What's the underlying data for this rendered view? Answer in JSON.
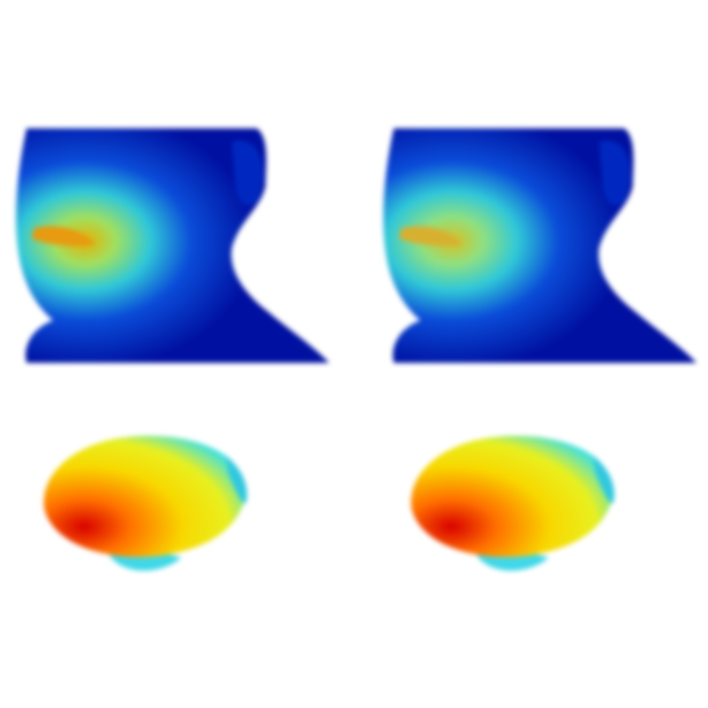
{
  "figure": {
    "layout": "2x2 grid",
    "rows": [
      {
        "kind": "face-mesh-heatmap",
        "panels": [
          "left",
          "right"
        ]
      },
      {
        "kind": "deformed-shape-heatmap",
        "panels": [
          "left",
          "right"
        ]
      }
    ],
    "colormap": {
      "name": "jet",
      "low": "#00008f",
      "mid_low": "#0060ff",
      "mid": "#30d0d0",
      "mid_high": "#e8e800",
      "high": "#e00000"
    },
    "background": "#ffffff"
  }
}
